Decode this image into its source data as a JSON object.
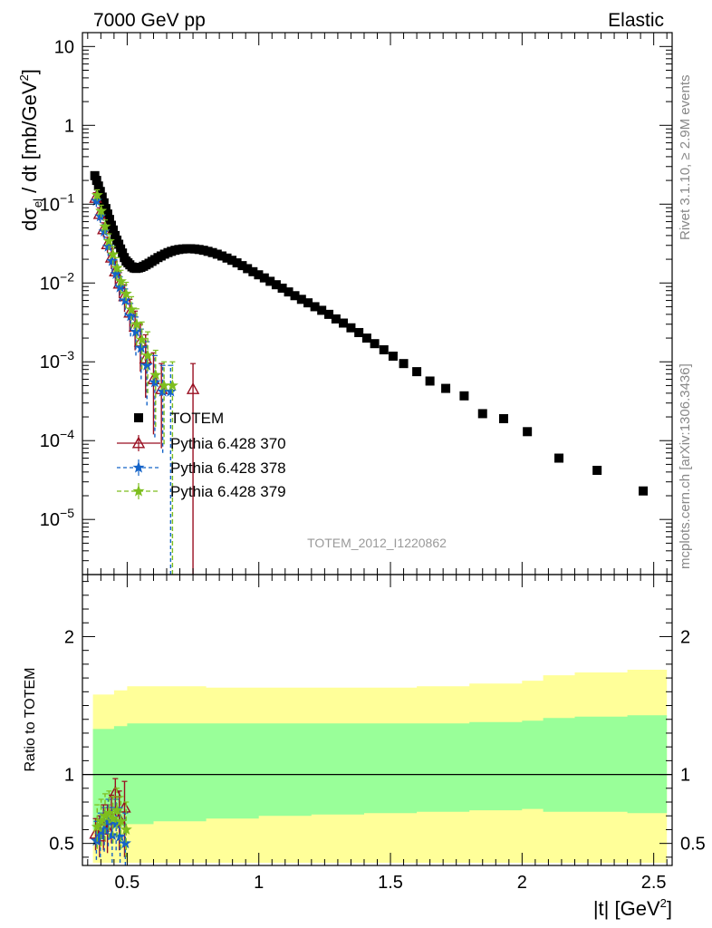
{
  "header": {
    "left": "7000 GeV pp",
    "right": "Elastic"
  },
  "side_labels": {
    "rivet": "Rivet 3.1.10, ≥ 2.9M events",
    "mcplots": "mcplots.cern.ch [arXiv:1306.3436]"
  },
  "watermark": "TOTEM_2012_I1220862",
  "main_ylabel": {
    "part1": "dσ",
    "sub": "el",
    "part2": " / dt [mb/GeV",
    "sup": "2",
    "part3": "]"
  },
  "ratio_ylabel": "Ratio to TOTEM",
  "xlabel": {
    "part1": "|t| [GeV",
    "sup": "2",
    "part2": "]"
  },
  "colors": {
    "data": "#000000",
    "p370": "#990f21",
    "p378": "#1463c8",
    "p379": "#7dbe1e",
    "band_inner": "#99ff99",
    "band_outer": "#ffff99"
  },
  "chart_data": [
    {
      "type": "scatter",
      "panel": "main",
      "log_y": true,
      "xlim": [
        0.33,
        2.57
      ],
      "ylim": [
        2e-06,
        15
      ],
      "y_ticks": [
        {
          "v": 1e-05,
          "base": "10",
          "exp": "−5"
        },
        {
          "v": 0.0001,
          "base": "10",
          "exp": "−4"
        },
        {
          "v": 0.001,
          "base": "10",
          "exp": "−3"
        },
        {
          "v": 0.01,
          "base": "10",
          "exp": "−2"
        },
        {
          "v": 0.1,
          "base": "10",
          "exp": "−1"
        },
        {
          "v": 1,
          "base": "1",
          "exp": ""
        },
        {
          "v": 10,
          "base": "10",
          "exp": ""
        }
      ],
      "legend_position": "lower-left",
      "series": [
        {
          "name": "TOTEM",
          "marker": "square",
          "color": "#000000",
          "x": [
            0.377,
            0.384,
            0.391,
            0.398,
            0.405,
            0.412,
            0.419,
            0.426,
            0.433,
            0.44,
            0.447,
            0.454,
            0.461,
            0.468,
            0.475,
            0.482,
            0.489,
            0.496,
            0.503,
            0.51,
            0.518,
            0.526,
            0.534,
            0.543,
            0.552,
            0.562,
            0.572,
            0.583,
            0.594,
            0.605,
            0.617,
            0.629,
            0.642,
            0.655,
            0.668,
            0.682,
            0.696,
            0.711,
            0.726,
            0.741,
            0.757,
            0.773,
            0.79,
            0.807,
            0.824,
            0.842,
            0.86,
            0.879,
            0.898,
            0.917,
            0.937,
            0.957,
            0.978,
            0.999,
            1.021,
            1.043,
            1.066,
            1.089,
            1.113,
            1.137,
            1.162,
            1.187,
            1.213,
            1.239,
            1.266,
            1.293,
            1.321,
            1.35,
            1.38,
            1.41,
            1.44,
            1.475,
            1.51,
            1.55,
            1.6,
            1.65,
            1.71,
            1.78,
            1.85,
            1.93,
            2.02,
            2.14,
            2.285,
            2.46
          ],
          "y": [
            0.23,
            0.2,
            0.17,
            0.145,
            0.123,
            0.104,
            0.088,
            0.075,
            0.064,
            0.054,
            0.047,
            0.04,
            0.035,
            0.031,
            0.027,
            0.024,
            0.021,
            0.019,
            0.018,
            0.017,
            0.016,
            0.0155,
            0.0153,
            0.0155,
            0.0158,
            0.0163,
            0.017,
            0.0178,
            0.0188,
            0.0198,
            0.021,
            0.022,
            0.0232,
            0.0243,
            0.0252,
            0.026,
            0.0266,
            0.027,
            0.0272,
            0.0272,
            0.027,
            0.0266,
            0.026,
            0.0252,
            0.0243,
            0.0232,
            0.022,
            0.0207,
            0.0194,
            0.018,
            0.0166,
            0.0152,
            0.0139,
            0.0127,
            0.0116,
            0.0105,
            0.0095,
            0.0086,
            0.0077,
            0.0069,
            0.0062,
            0.0056,
            0.005,
            0.0045,
            0.004,
            0.0035,
            0.0031,
            0.0027,
            0.00235,
            0.002,
            0.0017,
            0.00142,
            0.00118,
            0.00095,
            0.00075,
            0.00057,
            0.00046,
            0.00037,
            0.00022,
            0.00019,
            0.00013,
            6e-05,
            4.2e-05,
            2.3e-05
          ]
        },
        {
          "name": "Pythia 6.428 370",
          "marker": "open-triangle",
          "color": "#990f21",
          "x": [
            0.38,
            0.395,
            0.41,
            0.425,
            0.44,
            0.455,
            0.47,
            0.49,
            0.51,
            0.53,
            0.55,
            0.57,
            0.6,
            0.63,
            0.75
          ],
          "y": [
            0.12,
            0.075,
            0.048,
            0.031,
            0.021,
            0.014,
            0.0098,
            0.0068,
            0.0042,
            0.0028,
            0.0018,
            0.0011,
            0.0006,
            0.00045,
            0.00045
          ],
          "y_lo": [
            0.1,
            0.062,
            0.038,
            0.024,
            0.015,
            0.0095,
            0.0064,
            0.0043,
            0.0024,
            0.0014,
            0.00075,
            0.00035,
            0.00012,
            8e-05,
            2e-06
          ],
          "y_hi": [
            0.14,
            0.09,
            0.058,
            0.038,
            0.027,
            0.019,
            0.0135,
            0.0095,
            0.0062,
            0.0044,
            0.003,
            0.0022,
            0.0013,
            0.00095,
            0.00095
          ]
        },
        {
          "name": "Pythia 6.428 378",
          "marker": "star",
          "color": "#1463c8",
          "x": [
            0.383,
            0.398,
            0.413,
            0.428,
            0.443,
            0.458,
            0.473,
            0.493,
            0.513,
            0.533,
            0.553,
            0.575,
            0.605,
            0.635,
            0.665
          ],
          "y": [
            0.11,
            0.07,
            0.045,
            0.029,
            0.019,
            0.013,
            0.0088,
            0.006,
            0.0038,
            0.0024,
            0.0015,
            0.0009,
            0.00055,
            0.00042,
            0.00042
          ],
          "y_lo": [
            0.092,
            0.058,
            0.036,
            0.022,
            0.014,
            0.0089,
            0.0058,
            0.0038,
            0.0021,
            0.0012,
            0.0006,
            0.00028,
            0.00011,
            7e-05,
            2e-06
          ],
          "y_hi": [
            0.13,
            0.083,
            0.055,
            0.036,
            0.024,
            0.017,
            0.012,
            0.0084,
            0.0055,
            0.0037,
            0.0026,
            0.0018,
            0.0012,
            0.0009,
            0.0009
          ]
        },
        {
          "name": "Pythia 6.428 379",
          "marker": "star",
          "color": "#7dbe1e",
          "x": [
            0.386,
            0.401,
            0.416,
            0.431,
            0.446,
            0.461,
            0.476,
            0.496,
            0.516,
            0.536,
            0.556,
            0.578,
            0.608,
            0.64,
            0.672
          ],
          "y": [
            0.13,
            0.082,
            0.052,
            0.034,
            0.023,
            0.0155,
            0.0105,
            0.0073,
            0.0046,
            0.003,
            0.0019,
            0.0012,
            0.00068,
            0.0005,
            0.0005
          ],
          "y_lo": [
            0.11,
            0.068,
            0.042,
            0.026,
            0.017,
            0.011,
            0.0072,
            0.0048,
            0.0027,
            0.0016,
            0.0008,
            0.0004,
            0.00015,
            9e-05,
            2e-06
          ],
          "y_hi": [
            0.152,
            0.097,
            0.063,
            0.042,
            0.029,
            0.021,
            0.0145,
            0.0102,
            0.0067,
            0.0047,
            0.0032,
            0.0024,
            0.0014,
            0.001,
            0.001
          ]
        }
      ]
    },
    {
      "type": "scatter",
      "panel": "ratio",
      "ylabel": "Ratio to TOTEM",
      "xlim": [
        0.33,
        2.57
      ],
      "ylim": [
        0.34,
        2.45
      ],
      "y_ticks": [
        0.5,
        1,
        2
      ],
      "x_ticks": [
        {
          "v": 0.5,
          "label": "0.5"
        },
        {
          "v": 1,
          "label": "1"
        },
        {
          "v": 1.5,
          "label": "1.5"
        },
        {
          "v": 2,
          "label": "2"
        },
        {
          "v": 2.5,
          "label": "2.5"
        }
      ],
      "reference_line": 1,
      "bands": {
        "x": [
          0.37,
          0.45,
          0.5,
          0.6,
          0.8,
          1.0,
          1.2,
          1.4,
          1.6,
          1.8,
          2.0,
          2.08,
          2.2,
          2.4,
          2.55
        ],
        "outer_hi": [
          1.58,
          1.61,
          1.64,
          1.64,
          1.63,
          1.63,
          1.63,
          1.63,
          1.64,
          1.66,
          1.68,
          1.72,
          1.74,
          1.76,
          1.78
        ],
        "outer_lo": [
          0.36,
          0.36,
          0.36,
          0.36,
          0.36,
          0.36,
          0.36,
          0.36,
          0.36,
          0.36,
          0.36,
          0.36,
          0.36,
          0.36,
          0.36
        ],
        "inner_hi": [
          1.33,
          1.35,
          1.37,
          1.37,
          1.37,
          1.37,
          1.37,
          1.37,
          1.37,
          1.38,
          1.39,
          1.41,
          1.42,
          1.43,
          1.44
        ],
        "inner_lo": [
          0.6,
          0.62,
          0.64,
          0.66,
          0.68,
          0.7,
          0.71,
          0.72,
          0.73,
          0.74,
          0.75,
          0.73,
          0.73,
          0.72,
          0.72
        ]
      },
      "series": [
        {
          "name": "Pythia 6.428 370",
          "color": "#990f21",
          "marker": "open-triangle",
          "x": [
            0.38,
            0.395,
            0.41,
            0.425,
            0.44,
            0.455,
            0.47,
            0.49
          ],
          "y": [
            0.57,
            0.55,
            0.62,
            0.6,
            0.67,
            0.87,
            0.68,
            0.76
          ],
          "y_lo": [
            0.45,
            0.4,
            0.45,
            0.43,
            0.5,
            0.7,
            0.45,
            0.4
          ],
          "y_hi": [
            0.68,
            0.7,
            0.78,
            0.78,
            0.85,
            0.97,
            0.88,
            0.95
          ]
        },
        {
          "name": "Pythia 6.428 378",
          "color": "#1463c8",
          "marker": "star",
          "x": [
            0.383,
            0.398,
            0.413,
            0.428,
            0.443,
            0.458,
            0.473,
            0.493
          ],
          "y": [
            0.52,
            0.56,
            0.6,
            0.66,
            0.56,
            0.64,
            0.55,
            0.5
          ],
          "y_lo": [
            0.38,
            0.4,
            0.44,
            0.48,
            0.36,
            0.45,
            0.36,
            0.34
          ],
          "y_hi": [
            0.66,
            0.72,
            0.76,
            0.82,
            0.76,
            0.82,
            0.76,
            0.72
          ]
        },
        {
          "name": "Pythia 6.428 379",
          "color": "#7dbe1e",
          "marker": "star",
          "x": [
            0.386,
            0.401,
            0.416,
            0.431,
            0.446,
            0.461,
            0.476,
            0.496
          ],
          "y": [
            0.62,
            0.66,
            0.7,
            0.72,
            0.68,
            0.74,
            0.66,
            0.6
          ],
          "y_lo": [
            0.46,
            0.48,
            0.52,
            0.54,
            0.5,
            0.55,
            0.46,
            0.4
          ],
          "y_hi": [
            0.78,
            0.82,
            0.86,
            0.88,
            0.84,
            0.9,
            0.84,
            0.8
          ]
        }
      ]
    }
  ]
}
